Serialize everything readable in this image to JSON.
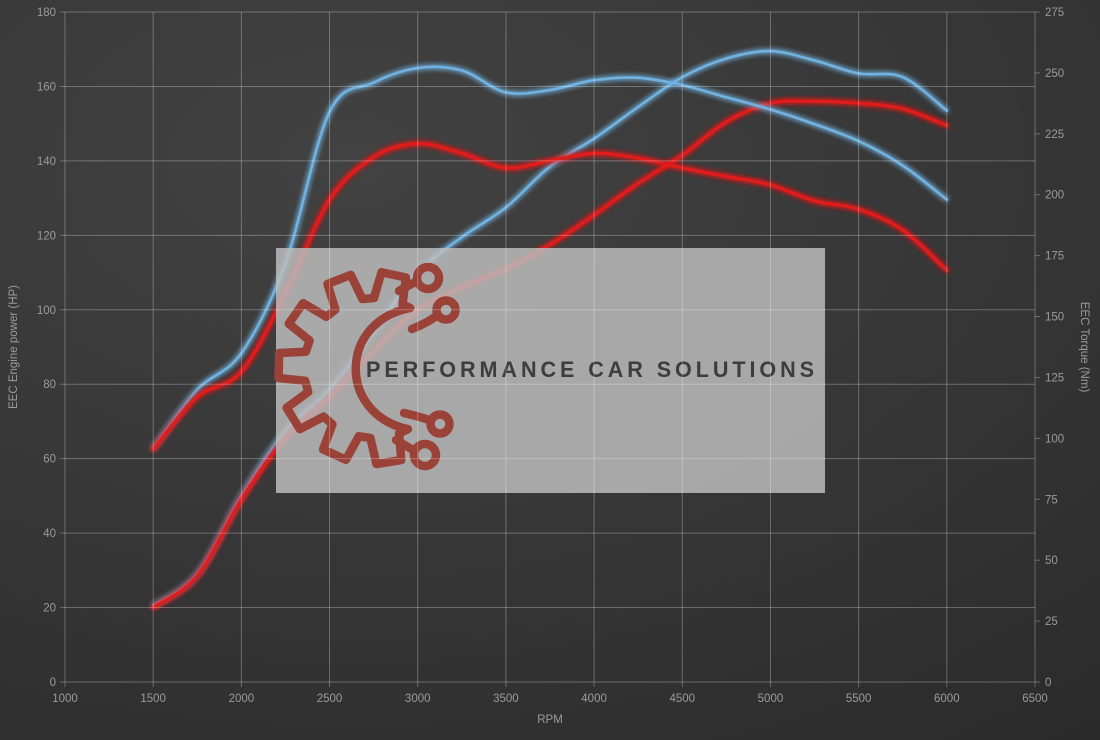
{
  "watermark": {
    "text": "PERFORMANCE CAR SOLUTIONS",
    "box_color": "#bebebe",
    "box_opacity": 0.84,
    "logo_color": "#9a4238",
    "text_color": "#3d3d3d"
  },
  "colors": {
    "tick_label": "#9b9b9b",
    "axis_title": "#9b9b9b",
    "grid": "rgba(255,255,255,0.28)"
  },
  "chart_data": {
    "type": "line",
    "xlabel": "RPM",
    "ylabel_left": "EEC Engine power (HP)",
    "ylabel_right": "EEC Torque (Nm)",
    "xlim": [
      1000,
      6500
    ],
    "ylim_left": [
      0,
      180
    ],
    "ylim_right": [
      0,
      275
    ],
    "x_ticks": [
      1000,
      1500,
      2000,
      2500,
      3000,
      3500,
      4000,
      4500,
      5000,
      5500,
      6000,
      6500
    ],
    "y_ticks_left": [
      0,
      20,
      40,
      60,
      80,
      100,
      120,
      140,
      160,
      180
    ],
    "y_ticks_right": [
      0,
      25,
      50,
      75,
      100,
      125,
      150,
      175,
      200,
      225,
      250,
      275
    ],
    "grid": true,
    "legend": "none",
    "x": [
      1500,
      1750,
      2000,
      2250,
      2500,
      2750,
      3000,
      3250,
      3500,
      3750,
      4000,
      4250,
      4500,
      4750,
      5000,
      5250,
      5500,
      5750,
      6000
    ],
    "series": [
      {
        "name": "Engine power run 1 (blue)",
        "axis": "left",
        "unit": "HP",
        "color": "#72b2e0",
        "glow": "#2d6f9e",
        "stroke_width": 2.6,
        "values": [
          20.5,
          29,
          50,
          67.5,
          78.5,
          94,
          110,
          119.5,
          127.5,
          138.5,
          146,
          154.5,
          162.5,
          167.5,
          169.5,
          167,
          163.5,
          162.5,
          153.5
        ]
      },
      {
        "name": "Engine power run 2 (red)",
        "axis": "left",
        "unit": "HP",
        "color": "#e11f1f",
        "glow": "#7e1010",
        "stroke_width": 3.2,
        "values": [
          20,
          28.5,
          49,
          65.5,
          76.5,
          89,
          100,
          106,
          111,
          117.5,
          125.5,
          134,
          141.5,
          150.5,
          155.5,
          156,
          155.5,
          154,
          149.5
        ]
      },
      {
        "name": "Torque run 1 (blue)",
        "axis": "right",
        "unit": "Nm",
        "color": "#72b2e0",
        "glow": "#2d6f9e",
        "stroke_width": 2.6,
        "values": [
          96,
          120,
          135,
          172,
          234,
          246,
          252,
          251,
          242,
          243,
          247,
          248,
          245,
          240,
          235,
          229,
          222,
          212,
          198
        ]
      },
      {
        "name": "Torque run 2 (red)",
        "axis": "right",
        "unit": "Nm",
        "color": "#e11f1f",
        "glow": "#7e1010",
        "stroke_width": 3.2,
        "values": [
          95.5,
          117,
          127.5,
          159.5,
          198,
          215.5,
          221,
          217,
          211,
          214,
          217,
          215,
          211,
          207.5,
          204,
          197.5,
          194,
          185.5,
          169
        ]
      }
    ]
  }
}
